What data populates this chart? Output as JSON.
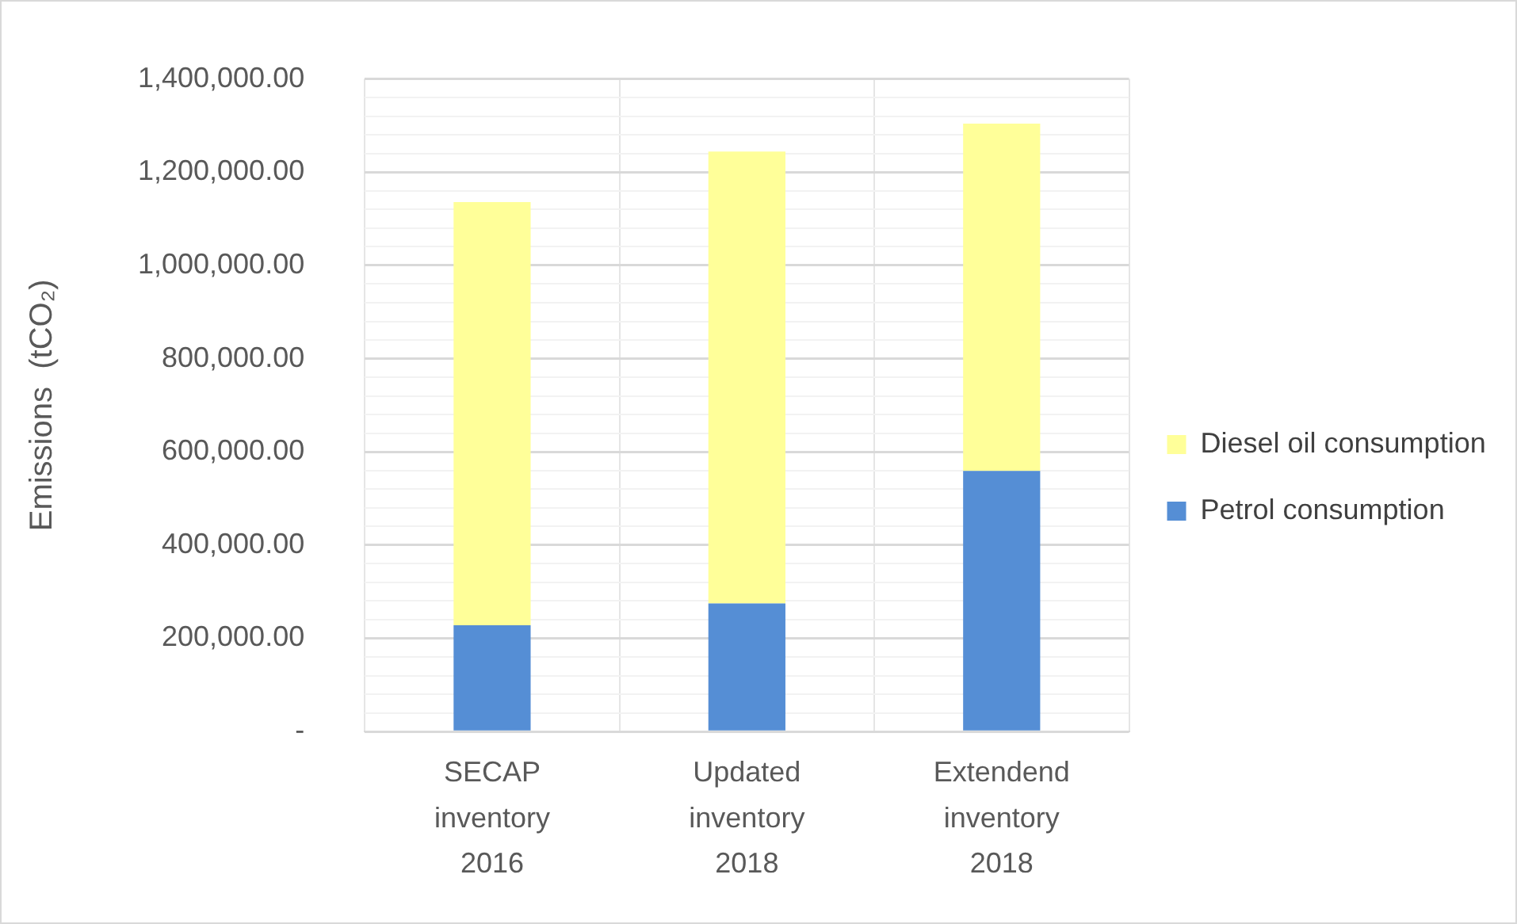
{
  "chart_data": {
    "type": "bar",
    "stacked": true,
    "ylabel": "Emissions  (tCO₂)",
    "categories": [
      "SECAP inventory 2016",
      "Updated inventory 2018",
      "Extendend inventory 2018"
    ],
    "series": [
      {
        "name": "Petrol consumption",
        "color": "#558ed5",
        "values": [
          228000,
          275000,
          559000
        ]
      },
      {
        "name": "Diesel oil consumption",
        "color": "#ffff99",
        "values": [
          908000,
          969000,
          745000
        ]
      }
    ],
    "ylim": [
      0,
      1400000
    ],
    "yticks": [
      {
        "value": 0,
        "label": "-"
      },
      {
        "value": 40000,
        "label": null
      },
      {
        "value": 80000,
        "label": null
      },
      {
        "value": 120000,
        "label": null
      },
      {
        "value": 160000,
        "label": null
      },
      {
        "value": 200000,
        "label": "200,000.00"
      },
      {
        "value": 240000,
        "label": null
      },
      {
        "value": 280000,
        "label": null
      },
      {
        "value": 320000,
        "label": null
      },
      {
        "value": 360000,
        "label": null
      },
      {
        "value": 400000,
        "label": "400,000.00"
      },
      {
        "value": 440000,
        "label": null
      },
      {
        "value": 480000,
        "label": null
      },
      {
        "value": 520000,
        "label": null
      },
      {
        "value": 560000,
        "label": null
      },
      {
        "value": 600000,
        "label": "600,000.00"
      },
      {
        "value": 640000,
        "label": null
      },
      {
        "value": 680000,
        "label": null
      },
      {
        "value": 720000,
        "label": null
      },
      {
        "value": 760000,
        "label": null
      },
      {
        "value": 800000,
        "label": "800,000.00"
      },
      {
        "value": 840000,
        "label": null
      },
      {
        "value": 880000,
        "label": null
      },
      {
        "value": 920000,
        "label": null
      },
      {
        "value": 960000,
        "label": null
      },
      {
        "value": 1000000,
        "label": "1,000,000.00"
      },
      {
        "value": 1040000,
        "label": null
      },
      {
        "value": 1080000,
        "label": null
      },
      {
        "value": 1120000,
        "label": null
      },
      {
        "value": 1160000,
        "label": null
      },
      {
        "value": 1200000,
        "label": "1,200,000.00"
      },
      {
        "value": 1240000,
        "label": null
      },
      {
        "value": 1280000,
        "label": null
      },
      {
        "value": 1320000,
        "label": null
      },
      {
        "value": 1360000,
        "label": null
      },
      {
        "value": 1400000,
        "label": "1,400,000.00"
      }
    ],
    "grid": true,
    "legend": "right"
  }
}
